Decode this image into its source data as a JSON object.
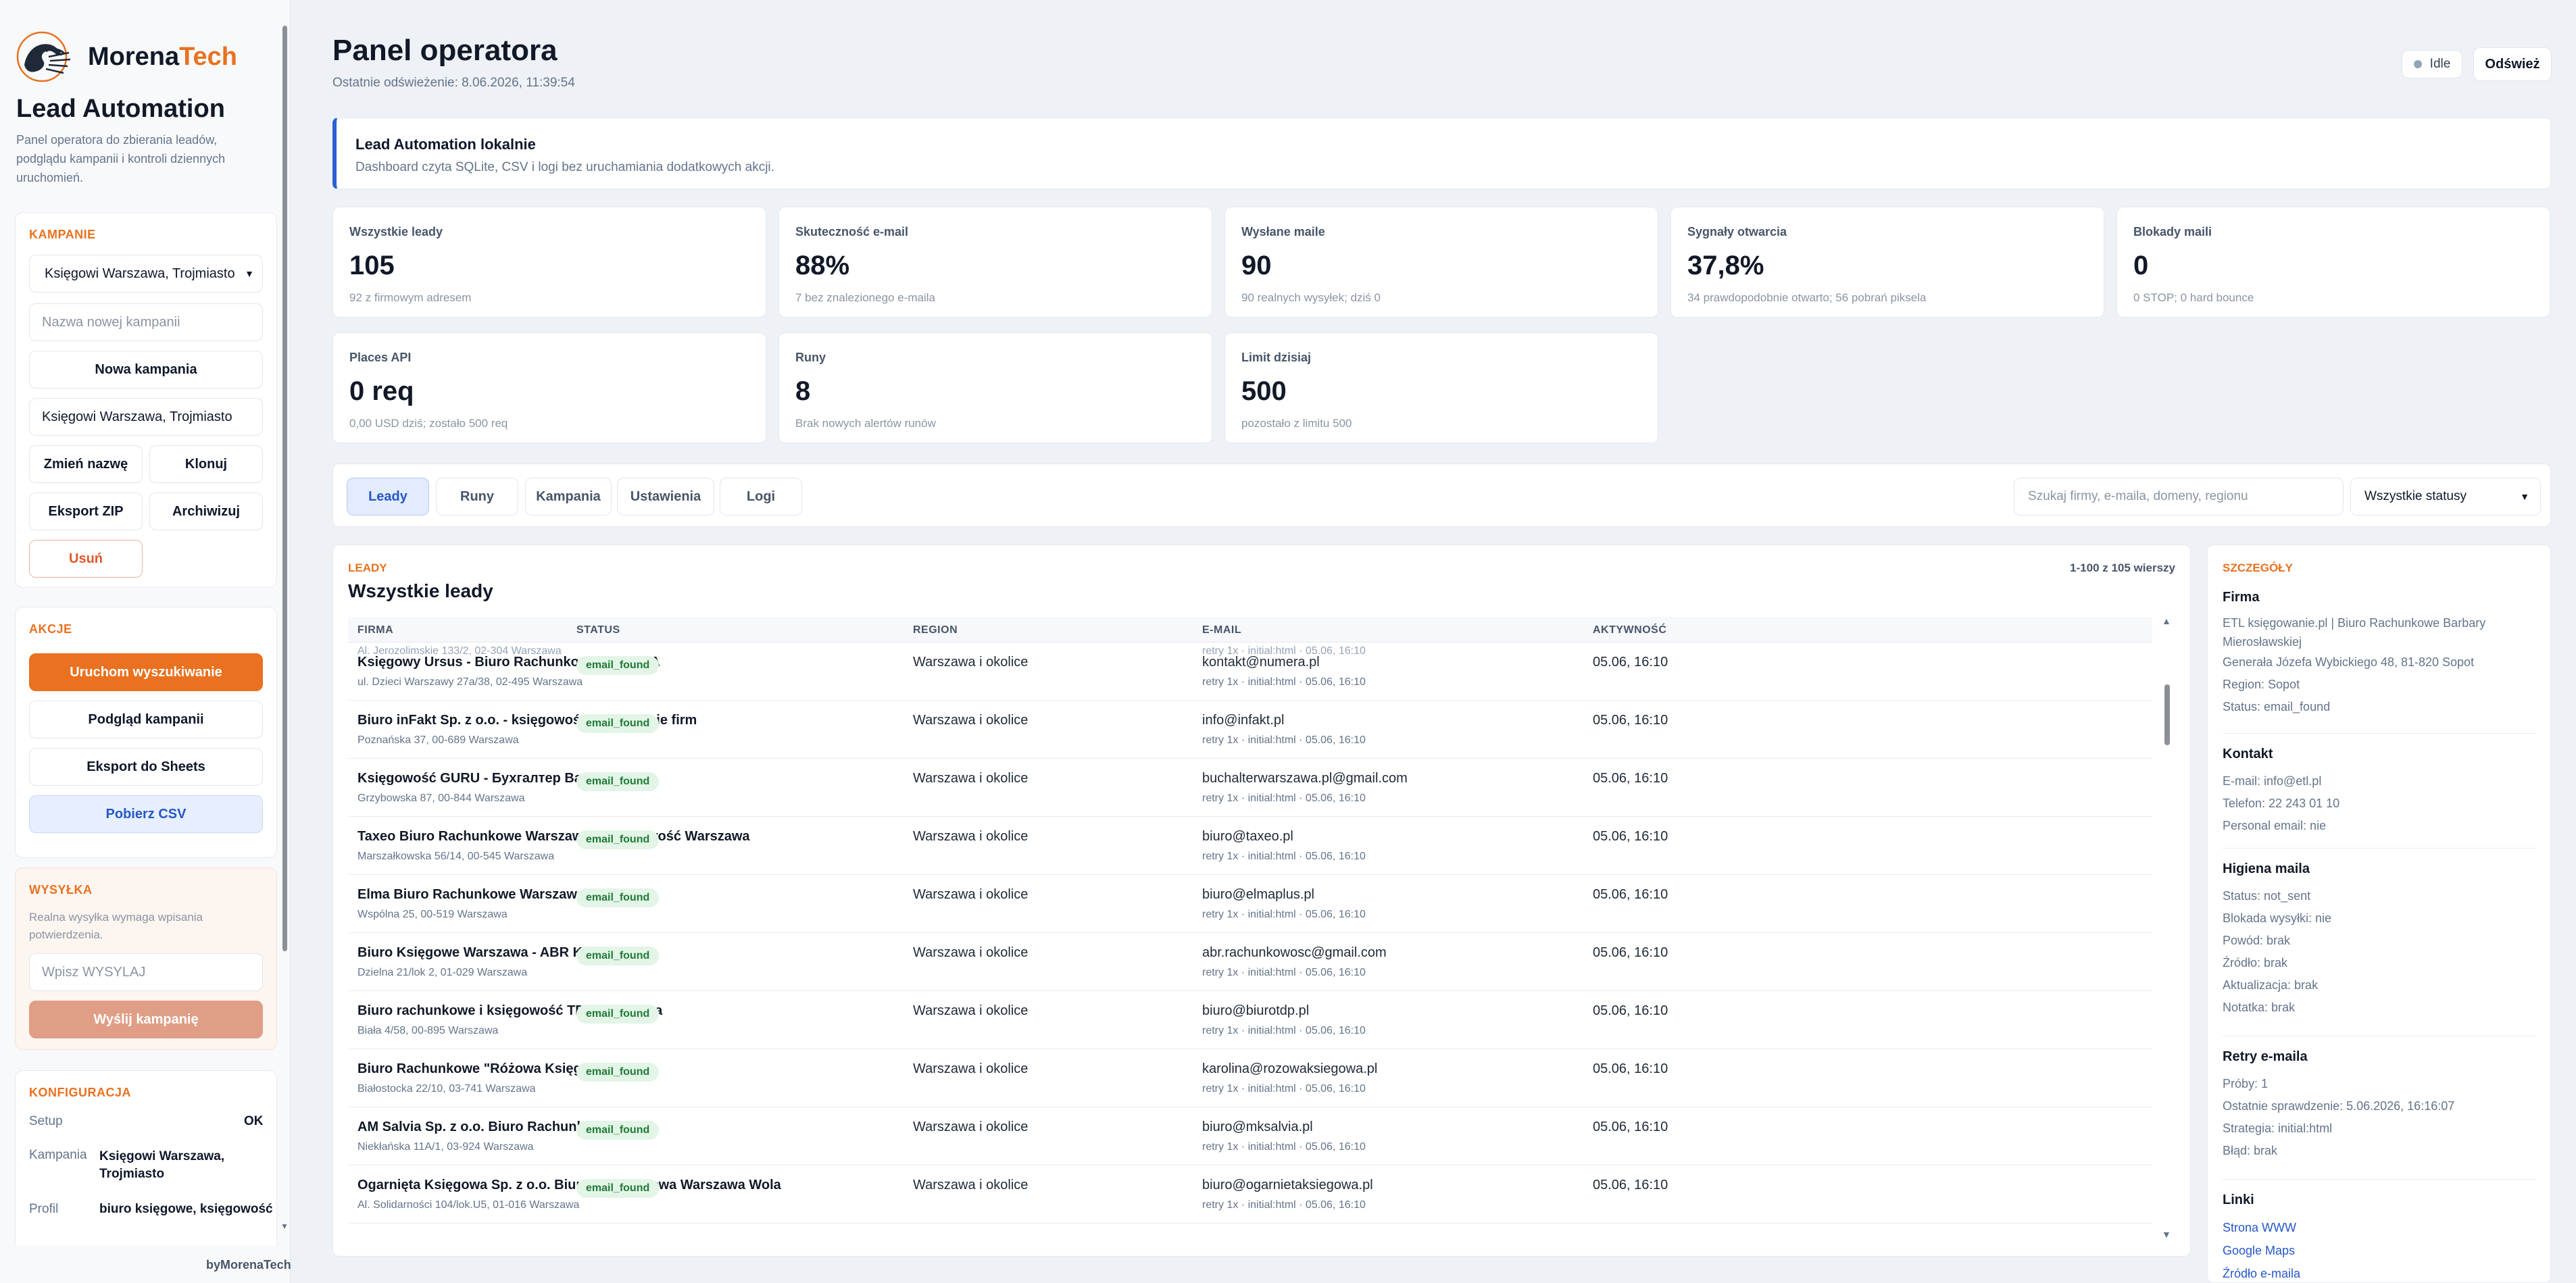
{
  "sidebar": {
    "brand_main": "Morena",
    "brand_accent": "Tech",
    "title": "Lead Automation",
    "description": "Panel operatora do zbierania leadów, podglądu kampanii i kontroli dziennych uruchomień.",
    "campaigns": {
      "title": "KAMPANIE",
      "selected": "Księgowi Warszawa, Trojmiasto",
      "new_name_placeholder": "Nazwa nowej kampanii",
      "new_button": "Nowa kampania",
      "rename_value": "Księgowi Warszawa, Trojmiasto",
      "rename_button": "Zmień nazwę",
      "clone_button": "Klonuj",
      "export_zip_button": "Eksport ZIP",
      "archive_button": "Archiwizuj",
      "delete_button": "Usuń"
    },
    "actions": {
      "title": "AKCJE",
      "run_search": "Uruchom wyszukiwanie",
      "preview": "Podgląd kampanii",
      "export_sheets": "Eksport do Sheets",
      "download_csv": "Pobierz CSV"
    },
    "sending": {
      "title": "WYSYŁKA",
      "description": "Realna wysyłka wymaga wpisania potwierdzenia.",
      "confirm_placeholder": "Wpisz WYSYLAJ",
      "send_button": "Wyślij kampanię"
    },
    "config": {
      "title": "KONFIGURACJA",
      "setup_label": "Setup",
      "setup_value": "OK",
      "campaign_label": "Kampania",
      "campaign_value": "Księgowi Warszawa, Trojmiasto",
      "profile_label": "Profil",
      "profile_value": "biuro księgowe, księgowość"
    },
    "byline": "byMorenaTech"
  },
  "header": {
    "title": "Panel operatora",
    "last_refresh": "Ostatnie odświeżenie: 8.06.2026, 11:39:54",
    "status": "Idle",
    "refresh_button": "Odśwież"
  },
  "notice": {
    "title": "Lead Automation lokalnie",
    "text": "Dashboard czyta SQLite, CSV i logi bez uruchamiania dodatkowych akcji."
  },
  "stats": [
    {
      "label": "Wszystkie leady",
      "value": "105",
      "sub": "92 z firmowym adresem"
    },
    {
      "label": "Skuteczność e-mail",
      "value": "88%",
      "sub": "7 bez znalezionego e-maila"
    },
    {
      "label": "Wysłane maile",
      "value": "90",
      "sub": "90 realnych wysyłek; dziś 0"
    },
    {
      "label": "Sygnały otwarcia",
      "value": "37,8%",
      "sub": "34 prawdopodobnie otwarto; 56 pobrań piksela"
    },
    {
      "label": "Blokady maili",
      "value": "0",
      "sub": "0 STOP; 0 hard bounce"
    },
    {
      "label": "Places API",
      "value": "0 req",
      "sub": "0,00 USD dziś; zostało 500 req"
    },
    {
      "label": "Runy",
      "value": "8",
      "sub": "Brak nowych alertów runów"
    },
    {
      "label": "Limit dzisiaj",
      "value": "500",
      "sub": "pozostało z limitu 500"
    }
  ],
  "tabs": [
    "Leady",
    "Runy",
    "Kampania",
    "Ustawienia",
    "Logi"
  ],
  "search_placeholder": "Szukaj firmy, e-maila, domeny, regionu",
  "status_filter": "Wszystkie statusy",
  "leads": {
    "kicker": "LEADY",
    "title": "Wszystkie leady",
    "rows_count": "1-100 z 105 wierszy",
    "columns": [
      "FIRMA",
      "STATUS",
      "REGION",
      "E-MAIL",
      "AKTYWNOŚĆ"
    ],
    "partial_row": "Al. Jerozolimskie 133/2, 02-304 Warszawa",
    "partial_email": "retry 1x · initial:html · 05.06, 16:10",
    "rows": [
      {
        "name": "Księgowy Ursus - Biuro Rachunkowe NUMERA",
        "address": "ul. Dzieci Warszawy 27a/38, 02-495 Warszawa",
        "status": "email_found",
        "region": "Warszawa i okolice",
        "email": "kontakt@numera.pl",
        "retry": "retry 1x · initial:html · 05.06, 16:10",
        "activity": "05.06, 16:10"
      },
      {
        "name": "Biuro inFakt Sp. z o.o. - księgowość i zakładanie firm",
        "address": "Poznańska 37, 00-689 Warszawa",
        "status": "email_found",
        "region": "Warszawa i okolice",
        "email": "info@infakt.pl",
        "retry": "retry 1x · initial:html · 05.06, 16:10",
        "activity": "05.06, 16:10"
      },
      {
        "name": "Księgowość GURU - Бухгалтер Варшава",
        "address": "Grzybowska 87, 00-844 Warszawa",
        "status": "email_found",
        "region": "Warszawa i okolice",
        "email": "buchalterwarszawa.pl@gmail.com",
        "retry": "retry 1x · initial:html · 05.06, 16:10",
        "activity": "05.06, 16:10"
      },
      {
        "name": "Taxeo Biuro Rachunkowe Warszawa - Księgowość Warszawa",
        "address": "Marszałkowska 56/14, 00-545 Warszawa",
        "status": "email_found",
        "region": "Warszawa i okolice",
        "email": "biuro@taxeo.pl",
        "retry": "retry 1x · initial:html · 05.06, 16:10",
        "activity": "05.06, 16:10"
      },
      {
        "name": "Elma Biuro Rachunkowe Warszawa",
        "address": "Wspólna 25, 00-519 Warszawa",
        "status": "email_found",
        "region": "Warszawa i okolice",
        "email": "biuro@elmaplus.pl",
        "retry": "retry 1x · initial:html · 05.06, 16:10",
        "activity": "05.06, 16:10"
      },
      {
        "name": "Biuro Księgowe Warszawa - ABR Księgowość",
        "address": "Dzielna 21/lok 2, 01-029 Warszawa",
        "status": "email_found",
        "region": "Warszawa i okolice",
        "email": "abr.rachunkowosc@gmail.com",
        "retry": "retry 1x · initial:html · 05.06, 16:10",
        "activity": "05.06, 16:10"
      },
      {
        "name": "Biuro rachunkowe i księgowość TDP Warszawa",
        "address": "Biała 4/58, 00-895 Warszawa",
        "status": "email_found",
        "region": "Warszawa i okolice",
        "email": "biuro@biurotdp.pl",
        "retry": "retry 1x · initial:html · 05.06, 16:10",
        "activity": "05.06, 16:10"
      },
      {
        "name": "Biuro Rachunkowe \"Różowa Księgowa\"",
        "address": "Białostocka 22/10, 03-741 Warszawa",
        "status": "email_found",
        "region": "Warszawa i okolice",
        "email": "karolina@rozowaksiegowa.pl",
        "retry": "retry 1x · initial:html · 05.06, 16:10",
        "activity": "05.06, 16:10"
      },
      {
        "name": "AM Salvia Sp. z o.o. Biuro Rachunkowe",
        "address": "Niekłańska 11A/1, 03-924 Warszawa",
        "status": "email_found",
        "region": "Warszawa i okolice",
        "email": "biuro@mksalvia.pl",
        "retry": "retry 1x · initial:html · 05.06, 16:10",
        "activity": "05.06, 16:10"
      },
      {
        "name": "Ogarnięta Księgowa Sp. z o.o. Biuro Rachunkowa Warszawa Wola",
        "address": "Al. Solidarności 104/lok.U5, 01-016 Warszawa",
        "status": "email_found",
        "region": "Warszawa i okolice",
        "email": "biuro@ogarnietaksiegowa.pl",
        "retry": "retry 1x · initial:html · 05.06, 16:10",
        "activity": "05.06, 16:10"
      }
    ]
  },
  "details": {
    "kicker": "SZCZEGÓŁY",
    "firma": {
      "title": "Firma",
      "name": "ETL księgowanie.pl | Biuro Rachunkowe Barbary Mierosławskiej",
      "address": "Generała Józefa Wybickiego 48, 81-820 Sopot",
      "region": "Region: Sopot",
      "status": "Status: email_found"
    },
    "kontakt": {
      "title": "Kontakt",
      "email": "E-mail: info@etl.pl",
      "phone": "Telefon: 22 243 01 10",
      "personal": "Personal email: nie"
    },
    "higiena": {
      "title": "Higiena maila",
      "status": "Status: not_sent",
      "block": "Blokada wysyłki: nie",
      "reason": "Powód: brak",
      "source": "Źródło: brak",
      "update": "Aktualizacja: brak",
      "note": "Notatka: brak"
    },
    "retry": {
      "title": "Retry e-maila",
      "tries": "Próby: 1",
      "last": "Ostatnie sprawdzenie: 5.06.2026, 16:16:07",
      "strategy": "Strategia: initial:html",
      "error": "Błąd: brak"
    },
    "links": {
      "title": "Linki",
      "www": "Strona WWW",
      "maps": "Google Maps",
      "source": "Źródło e-maila"
    }
  }
}
